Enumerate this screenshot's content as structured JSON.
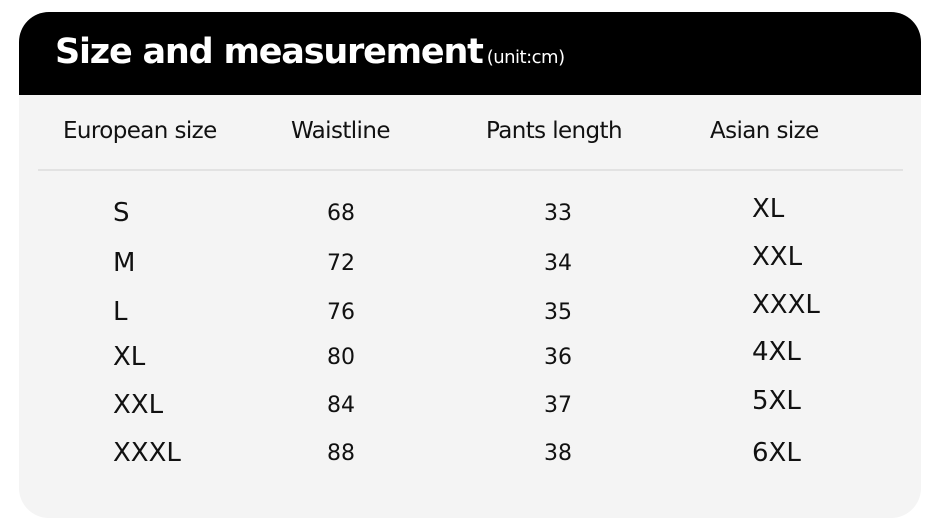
{
  "title": "Size and measurement",
  "unit": "(unit:cm)",
  "columns": [
    "European size",
    "Waistline",
    "Pants length",
    "Asian size"
  ],
  "rows": [
    {
      "european": "S",
      "waistline": "68",
      "pants_length": "33",
      "asian": "XL"
    },
    {
      "european": "M",
      "waistline": "72",
      "pants_length": "34",
      "asian": "XXL"
    },
    {
      "european": "L",
      "waistline": "76",
      "pants_length": "35",
      "asian": "XXXL"
    },
    {
      "european": "XL",
      "waistline": "80",
      "pants_length": "36",
      "asian": "4XL"
    },
    {
      "european": "XXL",
      "waistline": "84",
      "pants_length": "37",
      "asian": "5XL"
    },
    {
      "european": "XXXL",
      "waistline": "88",
      "pants_length": "38",
      "asian": "6XL"
    }
  ]
}
